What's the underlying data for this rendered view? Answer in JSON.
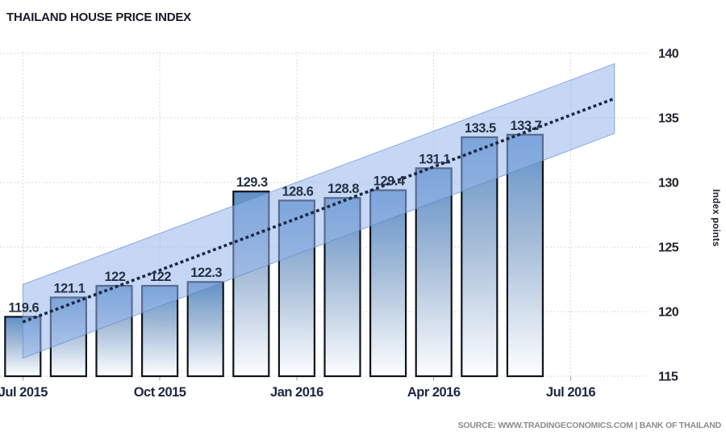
{
  "title": "THAILAND HOUSE PRICE INDEX",
  "source": "SOURCE: WWW.TRADINGECONOMICS.COM | BANK OF THAILAND",
  "y_axis_title": "Index points",
  "colors": {
    "background": "#ffffff",
    "title_text": "#1a1a2e",
    "bar_border": "#10141c",
    "bar_gradient_top": "#6090c6",
    "bar_gradient_mid": "#a6bdd8",
    "bar_gradient_bottom": "#fdfeff",
    "forecast_band_fill": "rgba(150,182,237,0.55)",
    "forecast_band_edge": "rgba(96,136,205,0.65)",
    "trend_line": "#1b2740",
    "gridline": "#d6d6d6",
    "axis_tick": "#a0a0a0",
    "tick_label_text": "#22222e",
    "x_label_text": "#1f2642",
    "value_label_text": "#243248",
    "source_text": "#8c8c8c"
  },
  "chart_data": {
    "type": "bar",
    "title": "THAILAND HOUSE PRICE INDEX",
    "xlabel": "",
    "ylabel": "Index points",
    "ylim": [
      115,
      140
    ],
    "yticks": [
      "115",
      "120",
      "125",
      "130",
      "135",
      "140"
    ],
    "grid": true,
    "legend_position": "none",
    "values": [
      119.6,
      121.1,
      122,
      122,
      122.3,
      129.3,
      128.6,
      128.8,
      129.4,
      131.1,
      133.5,
      133.7
    ],
    "value_labels": [
      "119.6",
      "121.1",
      "122",
      "122",
      "122.3",
      "129.3",
      "128.6",
      "128.8",
      "129.4",
      "131.1",
      "133.5",
      "133.7"
    ],
    "xticks": [
      {
        "label": "Jul 2015",
        "index": 0
      },
      {
        "label": "Oct 2015",
        "index": 3
      },
      {
        "label": "Jan 2016",
        "index": 6
      },
      {
        "label": "Apr 2016",
        "index": 9
      },
      {
        "label": "Jul 2016",
        "index": 12
      }
    ],
    "forecast_trend": {
      "style": "dotted",
      "start_index": 0,
      "end_index": 12.96,
      "start_value": 119.2,
      "end_value": 136.5
    },
    "forecast_band": {
      "start_index": 0,
      "end_index": 12.96,
      "start_top": 122.1,
      "start_bottom": 116.4,
      "end_top": 139.2,
      "end_bottom": 133.8
    }
  }
}
